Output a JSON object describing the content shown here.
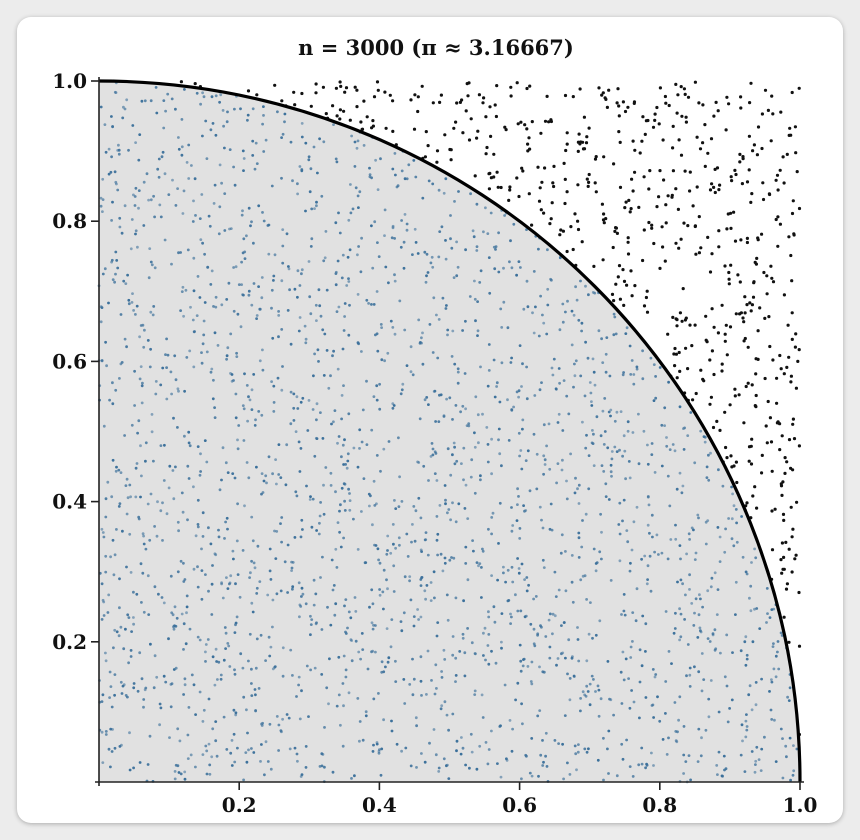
{
  "chart_data": {
    "type": "scatter",
    "title": "n = 3000 (π ≈ 3.16667)",
    "n": 3000,
    "pi_estimate": 3.16667,
    "xlim": [
      0,
      1
    ],
    "ylim": [
      0,
      1
    ],
    "x_ticks": [
      "0.2",
      "0.4",
      "0.6",
      "0.8",
      "1.0"
    ],
    "y_ticks": [
      "0.2",
      "0.4",
      "0.6",
      "0.8",
      "1.0"
    ],
    "x_tick_values": [
      0.2,
      0.4,
      0.6,
      0.8,
      1.0
    ],
    "y_tick_values": [
      0.2,
      0.4,
      0.6,
      0.8,
      1.0
    ],
    "curve": "quarter circle x^2 + y^2 = 1",
    "series": [
      {
        "region": "inside",
        "count": 2375,
        "color": "#3a6f9a"
      },
      {
        "region": "outside",
        "count": 625,
        "color": "#111111"
      }
    ],
    "fill_color": "#e1e1e1",
    "grid": false
  }
}
